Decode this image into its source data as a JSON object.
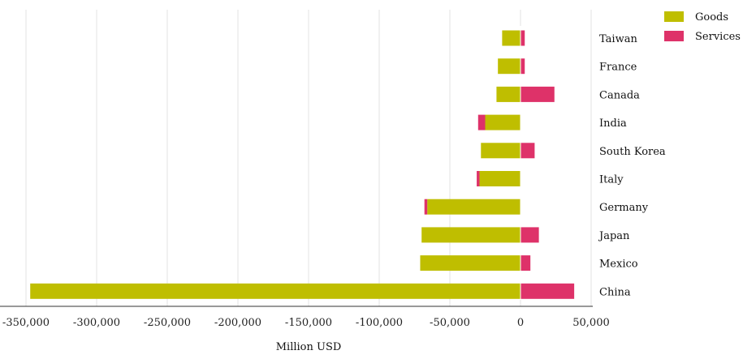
{
  "chart_data": {
    "type": "bar",
    "orientation": "horizontal",
    "stacked": "diverging",
    "categories": [
      "Taiwan",
      "France",
      "Canada",
      "India",
      "South Korea",
      "Italy",
      "Germany",
      "Japan",
      "Mexico",
      "China"
    ],
    "series": [
      {
        "name": "Goods",
        "color": "#bfbe00",
        "values": [
          -13000,
          -16000,
          -17000,
          -25000,
          -28000,
          -29000,
          -66000,
          -70000,
          -71000,
          -347000
        ]
      },
      {
        "name": "Services",
        "color": "#de3269",
        "values": [
          3000,
          3000,
          24000,
          -5000,
          10000,
          -2000,
          -2000,
          13000,
          7000,
          38000
        ]
      }
    ],
    "xlabel": "Million USD",
    "ylabel": "",
    "xlim": [
      -350000,
      50000
    ],
    "x_ticks": [
      -350000,
      -300000,
      -250000,
      -200000,
      -150000,
      -100000,
      -50000,
      0,
      50000
    ],
    "x_tick_labels": [
      "-350,000",
      "-300,000",
      "-250,000",
      "-200,000",
      "-150,000",
      "-100,000",
      "-50,000",
      "0",
      "50,000"
    ],
    "grid": "vertical",
    "legend_position": "top-right"
  }
}
